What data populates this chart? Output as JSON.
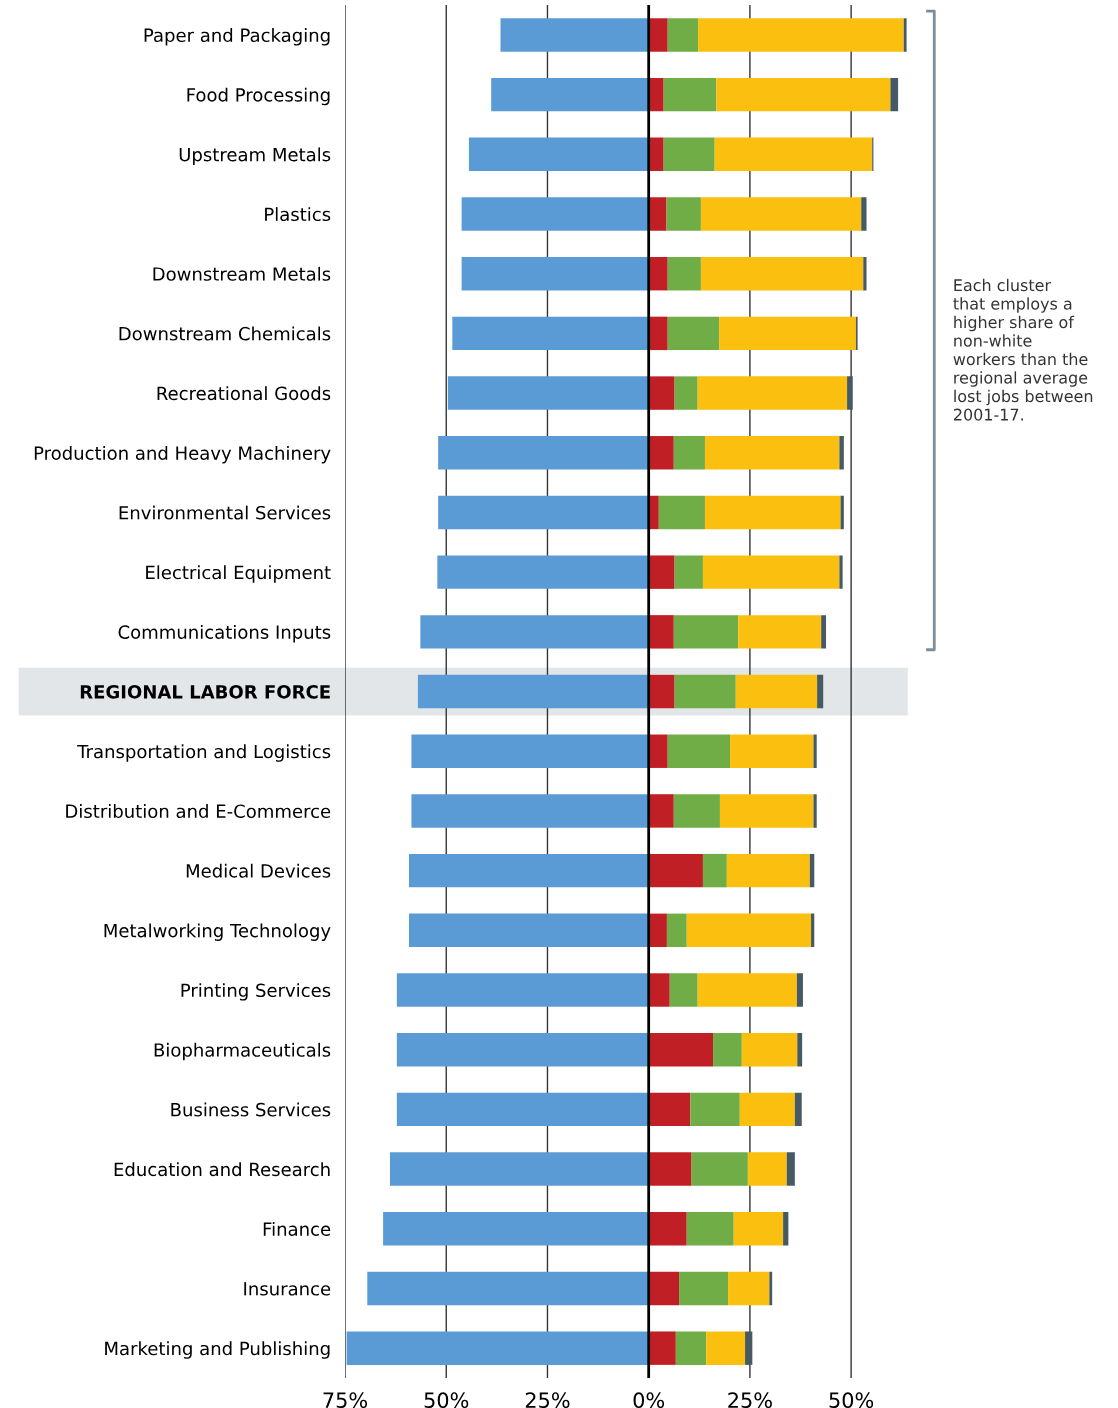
{
  "chart_data": {
    "type": "bar",
    "orientation": "horizontal",
    "stacked": true,
    "categories": [
      "Paper and Packaging",
      "Food Processing",
      "Upstream Metals",
      "Plastics",
      "Downstream Metals",
      "Downstream Chemicals",
      "Recreational Goods",
      "Production and Heavy Machinery",
      "Environmental Services",
      "Electrical Equipment",
      "Communications Inputs",
      "REGIONAL LABOR FORCE",
      "Transportation and Logistics",
      "Distribution and E-Commerce",
      "Medical Devices",
      "Metalworking Technology",
      "Printing Services",
      "Biopharmaceuticals",
      "Business Services",
      "Education and Research",
      "Finance",
      "Insurance",
      "Marketing and Publishing"
    ],
    "series": [
      {
        "color": "#5b9bd5",
        "values": [
          -36.6,
          -38.9,
          -44.4,
          -46.2,
          -46.2,
          -48.5,
          -49.6,
          -52.0,
          -52.0,
          -52.2,
          -56.4,
          -57.0,
          -58.6,
          -58.6,
          -59.2,
          -59.2,
          -62.2,
          -62.2,
          -62.2,
          -63.9,
          -65.6,
          -69.5,
          -74.6
        ]
      },
      {
        "color": "#c01f25",
        "values": [
          4.7,
          3.7,
          3.7,
          4.4,
          4.7,
          4.7,
          6.4,
          6.2,
          2.5,
          6.4,
          6.2,
          6.4,
          4.7,
          6.2,
          13.4,
          4.5,
          5.2,
          15.9,
          10.3,
          10.6,
          9.4,
          7.5,
          6.7
        ]
      },
      {
        "color": "#70ad47",
        "values": [
          7.5,
          13.0,
          12.6,
          8.5,
          8.2,
          12.7,
          5.7,
          7.7,
          11.4,
          7.0,
          15.9,
          15.1,
          15.4,
          11.4,
          5.9,
          4.9,
          6.9,
          7.1,
          12.2,
          13.9,
          11.6,
          12.1,
          7.5
        ]
      },
      {
        "color": "#fbbf0f",
        "values": [
          50.8,
          43.0,
          38.9,
          39.6,
          40.1,
          33.8,
          36.9,
          33.2,
          33.5,
          33.7,
          20.5,
          20.1,
          20.6,
          23.1,
          20.5,
          30.7,
          24.5,
          13.7,
          13.6,
          9.6,
          12.2,
          10.2,
          9.6
        ]
      },
      {
        "color": "#455a64",
        "values": [
          0.7,
          1.9,
          0.3,
          1.3,
          0.8,
          0.4,
          1.4,
          1.1,
          0.8,
          0.8,
          1.2,
          1.5,
          0.8,
          0.8,
          1.1,
          0.8,
          1.5,
          1.2,
          1.7,
          2.0,
          1.3,
          0.7,
          1.8
        ]
      }
    ],
    "xlim": [
      -75,
      64
    ],
    "xticks": [
      {
        "value": -75,
        "label": "75%"
      },
      {
        "value": -50,
        "label": "50%"
      },
      {
        "value": -25,
        "label": "25%"
      },
      {
        "value": 0,
        "label": "0%"
      },
      {
        "value": 25,
        "label": "25%"
      },
      {
        "value": 50,
        "label": "50%"
      }
    ],
    "grid": "x",
    "ref_lines": [
      {
        "axis": "x",
        "value": 0,
        "color": "#000000"
      }
    ],
    "bands": [
      {
        "axis": "y",
        "from": "REGIONAL LABOR FORCE",
        "to": "REGIONAL LABOR FORCE",
        "color": "#e3e6e9"
      }
    ],
    "annotations": [
      "Each cluster\nthat employs a\nhigher share of\nnon-white\nworkers than the\nregional average\nlost jobs between\n2001-17."
    ]
  }
}
